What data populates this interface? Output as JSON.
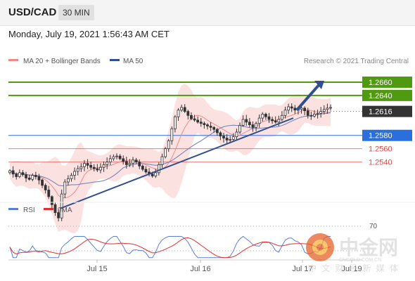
{
  "header": {
    "symbol": "USD/CAD",
    "timeframe": "30 MIN"
  },
  "datetime": "Monday, July 19, 2021 1:56:43 AM CET",
  "legend": [
    {
      "label": "MA 20 + Bollinger Bands",
      "color": "#f08a8a"
    },
    {
      "label": "MA 50",
      "color": "#2f4f8f"
    }
  ],
  "copyright": "Research © 2021 Trading Central",
  "colors": {
    "resistance": "#4f9a10",
    "support": "#2a6fdb",
    "pivot": "#333333",
    "sub_support": "#e04848",
    "trend": "#2f4f8f"
  },
  "chart_data": [
    {
      "type": "line",
      "description_series": "USDCAD 30-minute candlesticks",
      "xlabel": "",
      "ylabel": "",
      "x_ticks": [
        "Jul 15",
        "Jul 16",
        "Jul 17",
        "Jul 19"
      ],
      "ylim": [
        1.249,
        1.268
      ],
      "levels": [
        {
          "value": 1.266,
          "label": "1.2660",
          "kind": "resistance"
        },
        {
          "value": 1.264,
          "label": "1.2640",
          "kind": "resistance"
        },
        {
          "value": 1.2616,
          "label": "1.2616",
          "kind": "pivot"
        },
        {
          "value": 1.258,
          "label": "1.2580",
          "kind": "support"
        },
        {
          "value": 1.256,
          "label": "1.2560",
          "kind": "sub_support"
        },
        {
          "value": 1.254,
          "label": "1.2540",
          "kind": "sub_support"
        }
      ],
      "price_path": [
        1.2527,
        1.2522,
        1.2518,
        1.2524,
        1.2521,
        1.2516,
        1.2514,
        1.252,
        1.2518,
        1.2513,
        1.2505,
        1.2498,
        1.2488,
        1.2476,
        1.2464,
        1.2456,
        1.2492,
        1.251,
        1.2515,
        1.252,
        1.2526,
        1.253,
        1.2533,
        1.2538,
        1.2535,
        1.2532,
        1.253,
        1.2528,
        1.2532,
        1.2536,
        1.254,
        1.2545,
        1.2548,
        1.2549,
        1.2545,
        1.2541,
        1.2536,
        1.2538,
        1.2543,
        1.254,
        1.2534,
        1.2529,
        1.2525,
        1.2522,
        1.2519,
        1.2524,
        1.2536,
        1.2548,
        1.256,
        1.2572,
        1.259,
        1.2608,
        1.2618,
        1.2622,
        1.2616,
        1.261,
        1.2605,
        1.2603,
        1.26,
        1.2598,
        1.2596,
        1.2594,
        1.2592,
        1.2589,
        1.2584,
        1.2579,
        1.2576,
        1.2573,
        1.2574,
        1.2578,
        1.2585,
        1.2595,
        1.2604,
        1.26,
        1.2596,
        1.2592,
        1.2598,
        1.2606,
        1.2612,
        1.2608,
        1.2604,
        1.2602,
        1.26,
        1.2604,
        1.261,
        1.2618,
        1.2623,
        1.2621,
        1.2618,
        1.2619,
        1.2621,
        1.2617,
        1.261,
        1.2609,
        1.2612,
        1.2613,
        1.2616,
        1.2619,
        1.2621,
        1.2622
      ],
      "trend_line": {
        "from": [
          0.15,
          1.247
        ],
        "to": [
          0.83,
          1.2606
        ]
      },
      "arrow": {
        "from": [
          0.84,
          1.2618
        ],
        "to": [
          0.92,
          1.2662
        ]
      }
    },
    {
      "type": "line",
      "series": [
        {
          "name": "RSI",
          "color": "#5a7fd8"
        },
        {
          "name": "9MA",
          "color": "#e03030"
        }
      ],
      "levels": [
        {
          "value": 70,
          "label": "70"
        }
      ]
    }
  ],
  "watermark": {
    "brand": "中金网",
    "site": "CNGOLD.COM.CN",
    "tagline": "中 文 财 经 新 媒 体"
  }
}
